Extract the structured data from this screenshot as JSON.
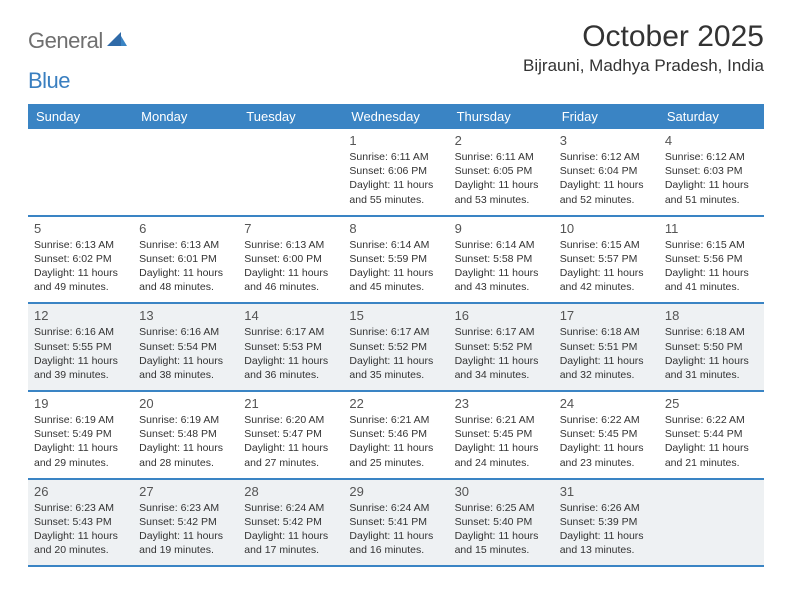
{
  "logo": {
    "part1": "General",
    "part2": "Blue"
  },
  "title": "October 2025",
  "location": "Bijrauni, Madhya Pradesh, India",
  "colors": {
    "header_bg": "#3a84c4",
    "header_text": "#ffffff",
    "shade_bg": "#eef1f3",
    "text": "#333333",
    "logo_gray": "#6f6f6f",
    "logo_blue": "#3a7fc0"
  },
  "typography": {
    "title_fontsize": 30,
    "location_fontsize": 17,
    "dayhead_fontsize": 13,
    "daynum_fontsize": 13,
    "cell_fontsize": 10.5
  },
  "day_names": [
    "Sunday",
    "Monday",
    "Tuesday",
    "Wednesday",
    "Thursday",
    "Friday",
    "Saturday"
  ],
  "weeks": [
    {
      "shaded": false,
      "cells": [
        null,
        null,
        null,
        {
          "n": "1",
          "sr": "6:11 AM",
          "ss": "6:06 PM",
          "dh": "11",
          "dm": "55"
        },
        {
          "n": "2",
          "sr": "6:11 AM",
          "ss": "6:05 PM",
          "dh": "11",
          "dm": "53"
        },
        {
          "n": "3",
          "sr": "6:12 AM",
          "ss": "6:04 PM",
          "dh": "11",
          "dm": "52"
        },
        {
          "n": "4",
          "sr": "6:12 AM",
          "ss": "6:03 PM",
          "dh": "11",
          "dm": "51"
        }
      ]
    },
    {
      "shaded": false,
      "cells": [
        {
          "n": "5",
          "sr": "6:13 AM",
          "ss": "6:02 PM",
          "dh": "11",
          "dm": "49"
        },
        {
          "n": "6",
          "sr": "6:13 AM",
          "ss": "6:01 PM",
          "dh": "11",
          "dm": "48"
        },
        {
          "n": "7",
          "sr": "6:13 AM",
          "ss": "6:00 PM",
          "dh": "11",
          "dm": "46"
        },
        {
          "n": "8",
          "sr": "6:14 AM",
          "ss": "5:59 PM",
          "dh": "11",
          "dm": "45"
        },
        {
          "n": "9",
          "sr": "6:14 AM",
          "ss": "5:58 PM",
          "dh": "11",
          "dm": "43"
        },
        {
          "n": "10",
          "sr": "6:15 AM",
          "ss": "5:57 PM",
          "dh": "11",
          "dm": "42"
        },
        {
          "n": "11",
          "sr": "6:15 AM",
          "ss": "5:56 PM",
          "dh": "11",
          "dm": "41"
        }
      ]
    },
    {
      "shaded": true,
      "cells": [
        {
          "n": "12",
          "sr": "6:16 AM",
          "ss": "5:55 PM",
          "dh": "11",
          "dm": "39"
        },
        {
          "n": "13",
          "sr": "6:16 AM",
          "ss": "5:54 PM",
          "dh": "11",
          "dm": "38"
        },
        {
          "n": "14",
          "sr": "6:17 AM",
          "ss": "5:53 PM",
          "dh": "11",
          "dm": "36"
        },
        {
          "n": "15",
          "sr": "6:17 AM",
          "ss": "5:52 PM",
          "dh": "11",
          "dm": "35"
        },
        {
          "n": "16",
          "sr": "6:17 AM",
          "ss": "5:52 PM",
          "dh": "11",
          "dm": "34"
        },
        {
          "n": "17",
          "sr": "6:18 AM",
          "ss": "5:51 PM",
          "dh": "11",
          "dm": "32"
        },
        {
          "n": "18",
          "sr": "6:18 AM",
          "ss": "5:50 PM",
          "dh": "11",
          "dm": "31"
        }
      ]
    },
    {
      "shaded": false,
      "cells": [
        {
          "n": "19",
          "sr": "6:19 AM",
          "ss": "5:49 PM",
          "dh": "11",
          "dm": "29"
        },
        {
          "n": "20",
          "sr": "6:19 AM",
          "ss": "5:48 PM",
          "dh": "11",
          "dm": "28"
        },
        {
          "n": "21",
          "sr": "6:20 AM",
          "ss": "5:47 PM",
          "dh": "11",
          "dm": "27"
        },
        {
          "n": "22",
          "sr": "6:21 AM",
          "ss": "5:46 PM",
          "dh": "11",
          "dm": "25"
        },
        {
          "n": "23",
          "sr": "6:21 AM",
          "ss": "5:45 PM",
          "dh": "11",
          "dm": "24"
        },
        {
          "n": "24",
          "sr": "6:22 AM",
          "ss": "5:45 PM",
          "dh": "11",
          "dm": "23"
        },
        {
          "n": "25",
          "sr": "6:22 AM",
          "ss": "5:44 PM",
          "dh": "11",
          "dm": "21"
        }
      ]
    },
    {
      "shaded": true,
      "cells": [
        {
          "n": "26",
          "sr": "6:23 AM",
          "ss": "5:43 PM",
          "dh": "11",
          "dm": "20"
        },
        {
          "n": "27",
          "sr": "6:23 AM",
          "ss": "5:42 PM",
          "dh": "11",
          "dm": "19"
        },
        {
          "n": "28",
          "sr": "6:24 AM",
          "ss": "5:42 PM",
          "dh": "11",
          "dm": "17"
        },
        {
          "n": "29",
          "sr": "6:24 AM",
          "ss": "5:41 PM",
          "dh": "11",
          "dm": "16"
        },
        {
          "n": "30",
          "sr": "6:25 AM",
          "ss": "5:40 PM",
          "dh": "11",
          "dm": "15"
        },
        {
          "n": "31",
          "sr": "6:26 AM",
          "ss": "5:39 PM",
          "dh": "11",
          "dm": "13"
        },
        null
      ]
    }
  ]
}
